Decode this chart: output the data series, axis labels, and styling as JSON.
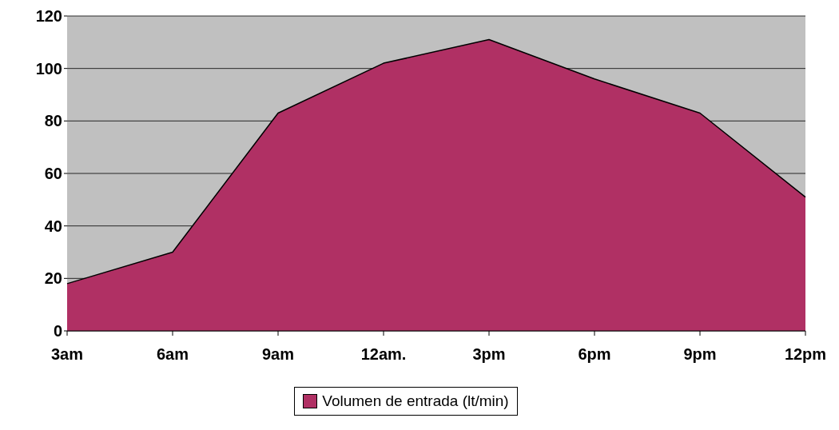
{
  "chart_data": {
    "type": "area",
    "categories": [
      "3am",
      "6am",
      "9am",
      "12am.",
      "3pm",
      "6pm",
      "9pm",
      "12pm"
    ],
    "series": [
      {
        "name": "Volumen de entrada (lt/min)",
        "color": "#b03064",
        "values": [
          18,
          30,
          83,
          102,
          111,
          96,
          83,
          51
        ]
      }
    ],
    "ylim": [
      0,
      120
    ],
    "yticks": [
      0,
      20,
      40,
      60,
      80,
      100,
      120
    ],
    "grid": "y",
    "legend": "bottom"
  }
}
